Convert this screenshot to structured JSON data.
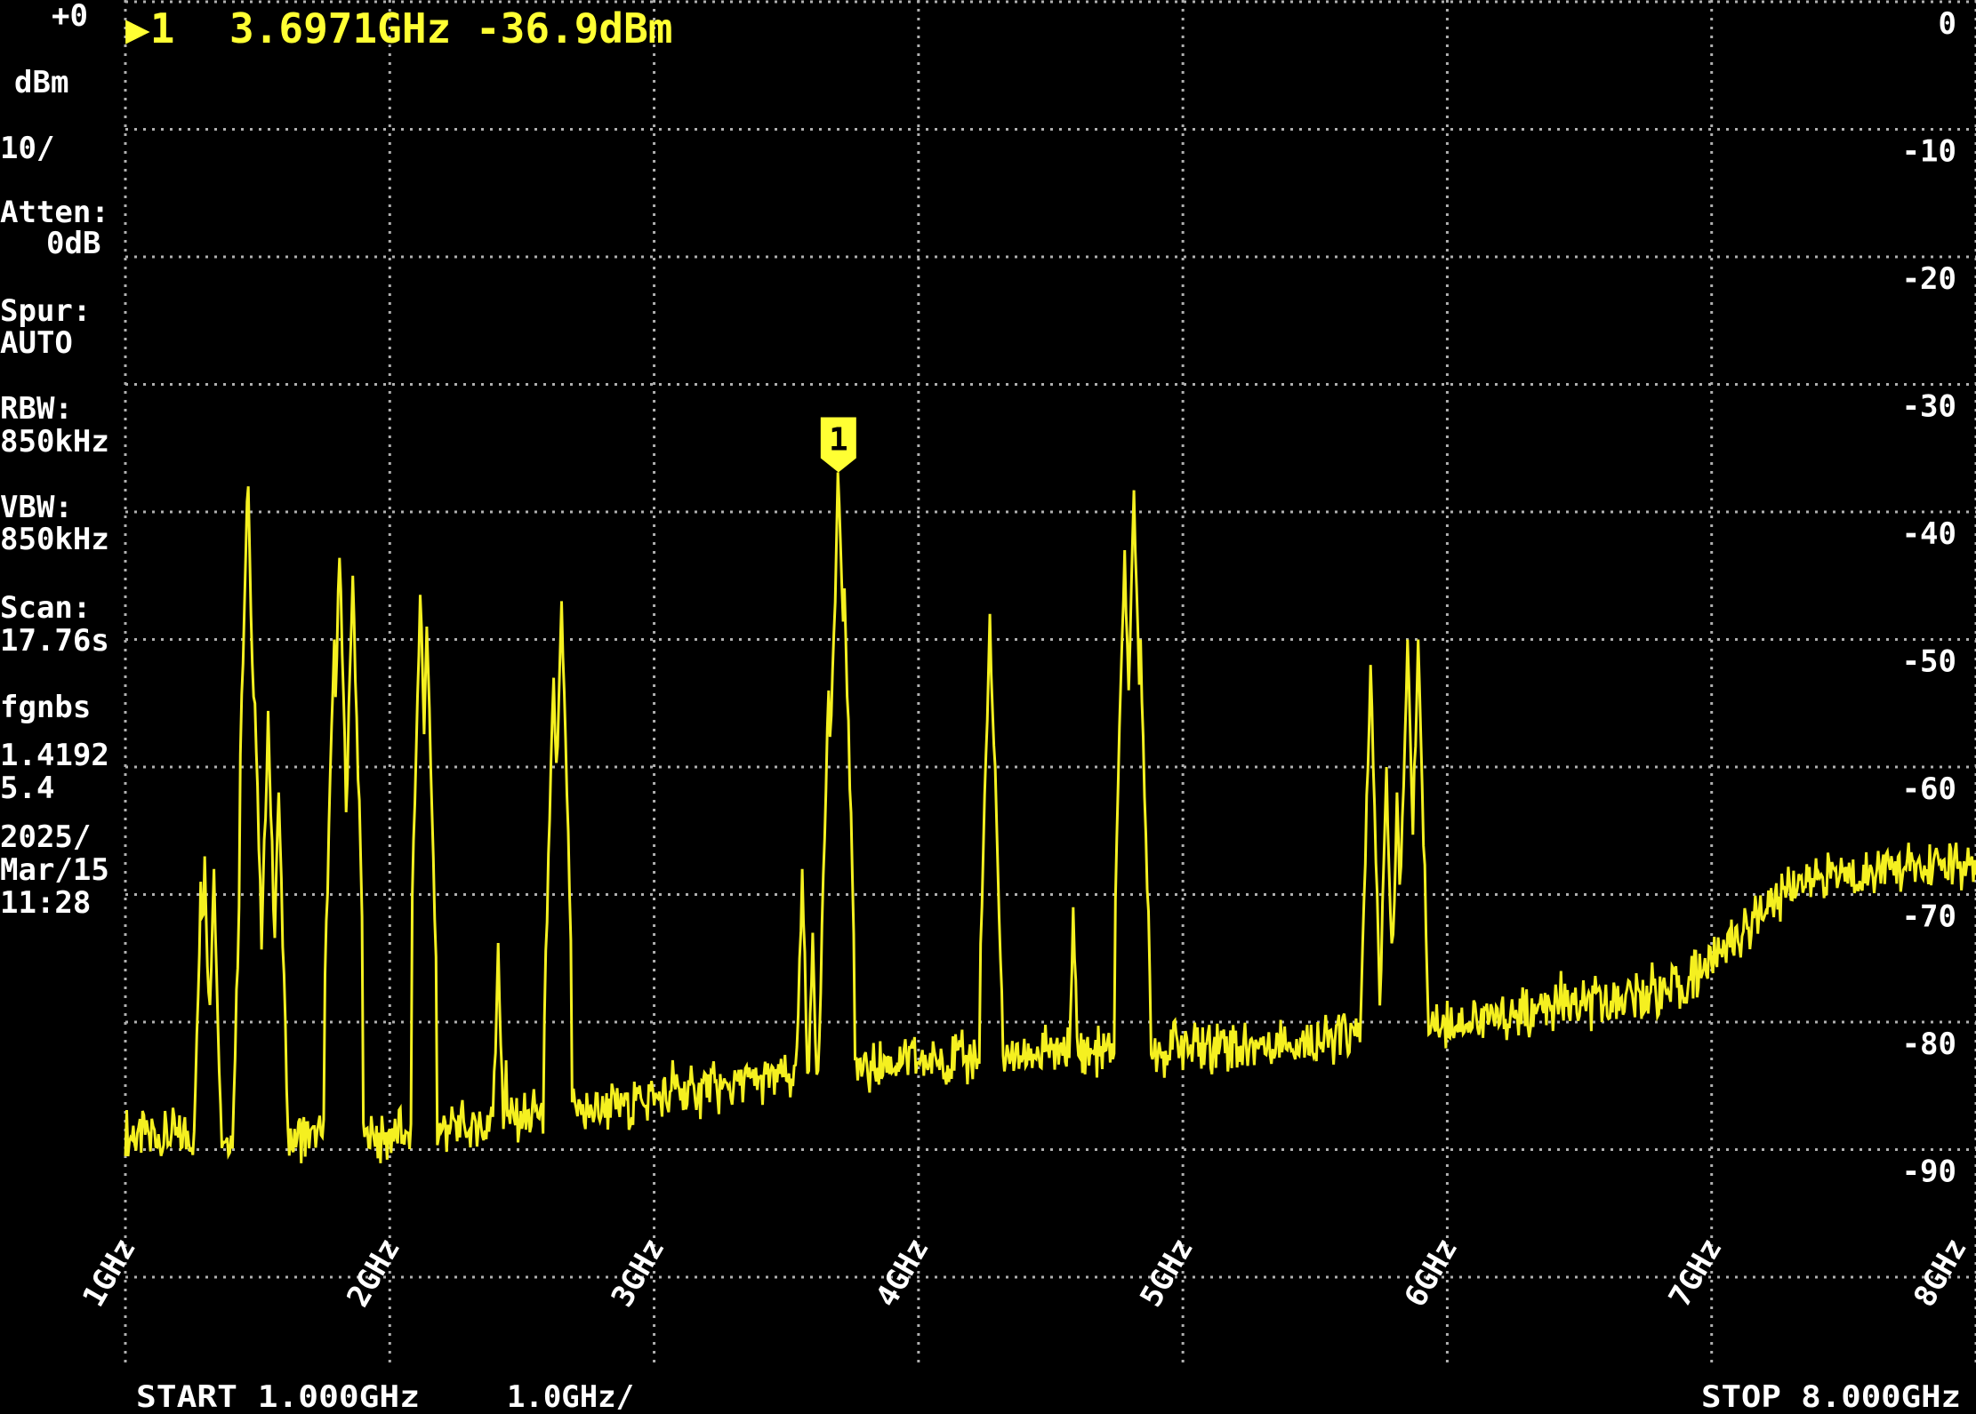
{
  "header": {
    "marker_arrow": "▶1",
    "marker_readout": "3.6971GHz -36.9dBm"
  },
  "side_panel": [
    "+0",
    "dBm",
    "10/",
    "Atten:",
    "0dB",
    "Spur:",
    "AUTO",
    "RBW:",
    "850kHz",
    "VBW:",
    "850kHz",
    "Scan:",
    "17.76s",
    "fgnbs",
    "1.4192",
    "5.4",
    "2025/",
    "Mar/15",
    "11:28"
  ],
  "footer": {
    "start": "START 1.000GHz",
    "span_div": "1.0GHz/",
    "stop": "STOP 8.000GHz"
  },
  "colors": {
    "trace": "#f5f020",
    "background": "#000000",
    "grid": "#b0b0b0",
    "text": "#ffffff",
    "marker": "#ffff33"
  },
  "chart_data": {
    "type": "line",
    "title": "",
    "xlabel": "",
    "ylabel": "",
    "xlim": [
      1,
      8
    ],
    "ylim": [
      -100,
      0
    ],
    "x_unit": "GHz",
    "y_unit": "dBm",
    "grid": true,
    "x_ticks": [
      1,
      2,
      3,
      4,
      5,
      6,
      7,
      8
    ],
    "x_tick_labels": [
      "1GHz",
      "2GHz",
      "3GHz",
      "4GHz",
      "5GHz",
      "6GHz",
      "7GHz",
      "8GHz"
    ],
    "y_ticks": [
      0,
      -10,
      -20,
      -30,
      -40,
      -50,
      -60,
      -70,
      -80,
      -90
    ],
    "y_tick_labels": [
      "0",
      "-10",
      "-20",
      "-30",
      "-40",
      "-50",
      "-60",
      "-70",
      "-80",
      "-90"
    ],
    "marker": {
      "label": "1",
      "freq_ghz": 3.6971,
      "level_dbm": -36.9
    },
    "noise_floor": [
      [
        1,
        -89
      ],
      [
        2,
        -89
      ],
      [
        2.7,
        -87
      ],
      [
        3,
        -86
      ],
      [
        3.6,
        -84
      ],
      [
        4,
        -83
      ],
      [
        5,
        -82
      ],
      [
        5.5,
        -81.5
      ],
      [
        6,
        -80
      ],
      [
        6.5,
        -79
      ],
      [
        6.9,
        -77
      ],
      [
        7.1,
        -73
      ],
      [
        7.3,
        -69
      ],
      [
        7.6,
        -68
      ],
      [
        8,
        -68
      ]
    ],
    "peaks": [
      [
        1.286,
        -69
      ],
      [
        1.3,
        -67
      ],
      [
        1.334,
        -68
      ],
      [
        1.43,
        -71
      ],
      [
        1.463,
        -38
      ],
      [
        1.49,
        -55
      ],
      [
        1.54,
        -55.6
      ],
      [
        1.58,
        -62
      ],
      [
        1.79,
        -50
      ],
      [
        1.81,
        -43.6
      ],
      [
        1.86,
        -45
      ],
      [
        2.116,
        -46.5
      ],
      [
        2.14,
        -49
      ],
      [
        2.41,
        -73.8
      ],
      [
        2.44,
        -83
      ],
      [
        2.62,
        -53
      ],
      [
        2.65,
        -47
      ],
      [
        3.07,
        -83
      ],
      [
        3.56,
        -68
      ],
      [
        3.6,
        -73
      ],
      [
        3.66,
        -54
      ],
      [
        3.697,
        -36.9
      ],
      [
        3.72,
        -46
      ],
      [
        4.27,
        -48
      ],
      [
        4.29,
        -60
      ],
      [
        4.586,
        -71
      ],
      [
        4.78,
        -43
      ],
      [
        4.815,
        -38.3
      ],
      [
        4.84,
        -50
      ],
      [
        5.71,
        -52
      ],
      [
        5.77,
        -60
      ],
      [
        5.81,
        -62
      ],
      [
        5.85,
        -50
      ],
      [
        5.89,
        -50
      ],
      [
        6.43,
        -76
      ]
    ]
  }
}
